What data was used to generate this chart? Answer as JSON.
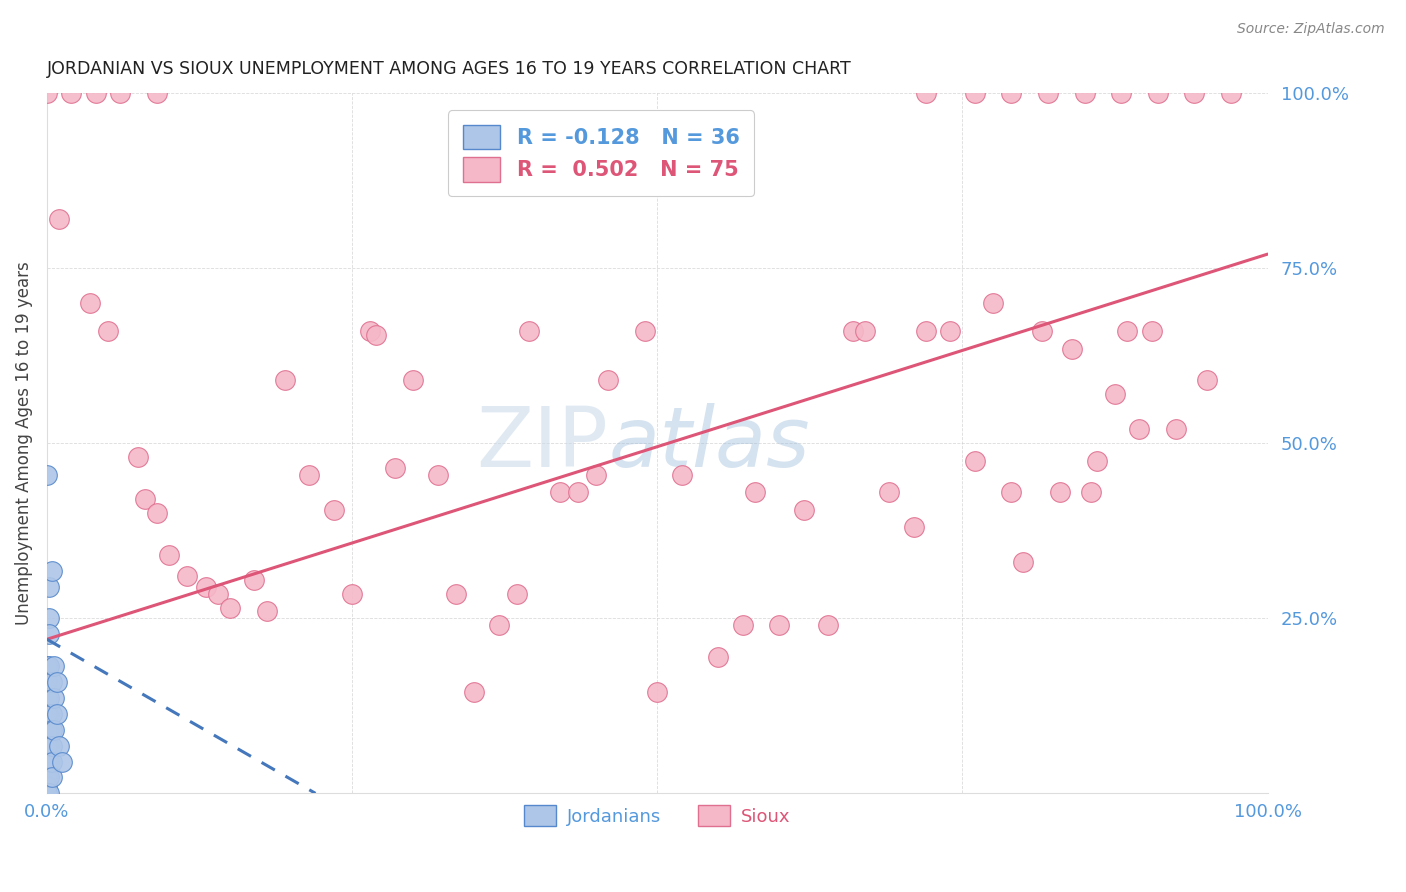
{
  "title": "JORDANIAN VS SIOUX UNEMPLOYMENT AMONG AGES 16 TO 19 YEARS CORRELATION CHART",
  "source": "Source: ZipAtlas.com",
  "ylabel": "Unemployment Among Ages 16 to 19 years",
  "legend_blue_label": "R = -0.128   N = 36",
  "legend_pink_label": "R =  0.502   N = 75",
  "legend_jordanians": "Jordanians",
  "legend_sioux": "Sioux",
  "blue_color": "#aec6e8",
  "pink_color": "#f5b8c8",
  "blue_edge_color": "#5588cc",
  "pink_edge_color": "#e07090",
  "blue_line_color": "#4477bb",
  "pink_line_color": "#dd5577",
  "blue_scatter": [
    [
      0.0,
      0.455
    ],
    [
      0.0,
      0.182
    ],
    [
      0.0,
      0.16
    ],
    [
      0.0,
      0.136
    ],
    [
      0.0,
      0.114
    ],
    [
      0.0,
      0.091
    ],
    [
      0.0,
      0.068
    ],
    [
      0.0,
      0.045
    ],
    [
      0.0,
      0.023
    ],
    [
      0.0,
      0.01
    ],
    [
      0.0,
      0.0
    ],
    [
      0.002,
      0.295
    ],
    [
      0.002,
      0.25
    ],
    [
      0.002,
      0.227
    ],
    [
      0.002,
      0.182
    ],
    [
      0.002,
      0.136
    ],
    [
      0.002,
      0.114
    ],
    [
      0.002,
      0.091
    ],
    [
      0.002,
      0.068
    ],
    [
      0.002,
      0.045
    ],
    [
      0.002,
      0.023
    ],
    [
      0.002,
      0.0
    ],
    [
      0.004,
      0.318
    ],
    [
      0.004,
      0.159
    ],
    [
      0.004,
      0.114
    ],
    [
      0.004,
      0.091
    ],
    [
      0.004,
      0.068
    ],
    [
      0.004,
      0.045
    ],
    [
      0.004,
      0.023
    ],
    [
      0.006,
      0.182
    ],
    [
      0.006,
      0.136
    ],
    [
      0.006,
      0.091
    ],
    [
      0.008,
      0.159
    ],
    [
      0.008,
      0.114
    ],
    [
      0.01,
      0.068
    ],
    [
      0.012,
      0.045
    ]
  ],
  "pink_scatter": [
    [
      0.0,
      1.0
    ],
    [
      0.02,
      1.0
    ],
    [
      0.04,
      1.0
    ],
    [
      0.06,
      1.0
    ],
    [
      0.09,
      1.0
    ],
    [
      0.72,
      1.0
    ],
    [
      0.76,
      1.0
    ],
    [
      0.79,
      1.0
    ],
    [
      0.82,
      1.0
    ],
    [
      0.85,
      1.0
    ],
    [
      0.88,
      1.0
    ],
    [
      0.91,
      1.0
    ],
    [
      0.94,
      1.0
    ],
    [
      0.97,
      1.0
    ],
    [
      0.01,
      0.82
    ],
    [
      0.035,
      0.7
    ],
    [
      0.05,
      0.66
    ],
    [
      0.075,
      0.48
    ],
    [
      0.08,
      0.42
    ],
    [
      0.09,
      0.4
    ],
    [
      0.1,
      0.34
    ],
    [
      0.115,
      0.31
    ],
    [
      0.13,
      0.295
    ],
    [
      0.14,
      0.285
    ],
    [
      0.15,
      0.265
    ],
    [
      0.17,
      0.305
    ],
    [
      0.18,
      0.26
    ],
    [
      0.195,
      0.59
    ],
    [
      0.215,
      0.455
    ],
    [
      0.235,
      0.405
    ],
    [
      0.25,
      0.285
    ],
    [
      0.265,
      0.66
    ],
    [
      0.27,
      0.655
    ],
    [
      0.285,
      0.465
    ],
    [
      0.3,
      0.59
    ],
    [
      0.32,
      0.455
    ],
    [
      0.335,
      0.285
    ],
    [
      0.35,
      0.145
    ],
    [
      0.37,
      0.24
    ],
    [
      0.385,
      0.285
    ],
    [
      0.395,
      0.66
    ],
    [
      0.42,
      0.43
    ],
    [
      0.435,
      0.43
    ],
    [
      0.45,
      0.455
    ],
    [
      0.46,
      0.59
    ],
    [
      0.49,
      0.66
    ],
    [
      0.5,
      0.145
    ],
    [
      0.52,
      0.455
    ],
    [
      0.55,
      0.195
    ],
    [
      0.57,
      0.24
    ],
    [
      0.58,
      0.43
    ],
    [
      0.6,
      0.24
    ],
    [
      0.62,
      0.405
    ],
    [
      0.64,
      0.24
    ],
    [
      0.66,
      0.66
    ],
    [
      0.67,
      0.66
    ],
    [
      0.69,
      0.43
    ],
    [
      0.71,
      0.38
    ],
    [
      0.72,
      0.66
    ],
    [
      0.74,
      0.66
    ],
    [
      0.76,
      0.475
    ],
    [
      0.775,
      0.7
    ],
    [
      0.79,
      0.43
    ],
    [
      0.8,
      0.33
    ],
    [
      0.815,
      0.66
    ],
    [
      0.83,
      0.43
    ],
    [
      0.84,
      0.635
    ],
    [
      0.855,
      0.43
    ],
    [
      0.86,
      0.475
    ],
    [
      0.875,
      0.57
    ],
    [
      0.885,
      0.66
    ],
    [
      0.895,
      0.52
    ],
    [
      0.905,
      0.66
    ],
    [
      0.925,
      0.52
    ],
    [
      0.95,
      0.59
    ]
  ],
  "pink_line": {
    "x0": 0.0,
    "x1": 1.0,
    "y0": 0.22,
    "y1": 0.77
  },
  "blue_line": {
    "x0": 0.0,
    "x1": 0.22,
    "y0": 0.22,
    "y1": 0.0
  },
  "xlim": [
    0.0,
    1.0
  ],
  "ylim": [
    0.0,
    1.0
  ],
  "xticks": [
    0.0,
    0.25,
    0.5,
    0.75,
    1.0
  ],
  "yticks": [
    0.0,
    0.25,
    0.5,
    0.75,
    1.0
  ],
  "xtick_labels": [
    "0.0%",
    "",
    "",
    "",
    "100.0%"
  ],
  "ytick_labels": [
    "",
    "25.0%",
    "50.0%",
    "75.0%",
    "100.0%"
  ],
  "background_color": "#ffffff",
  "grid_color": "#cccccc"
}
